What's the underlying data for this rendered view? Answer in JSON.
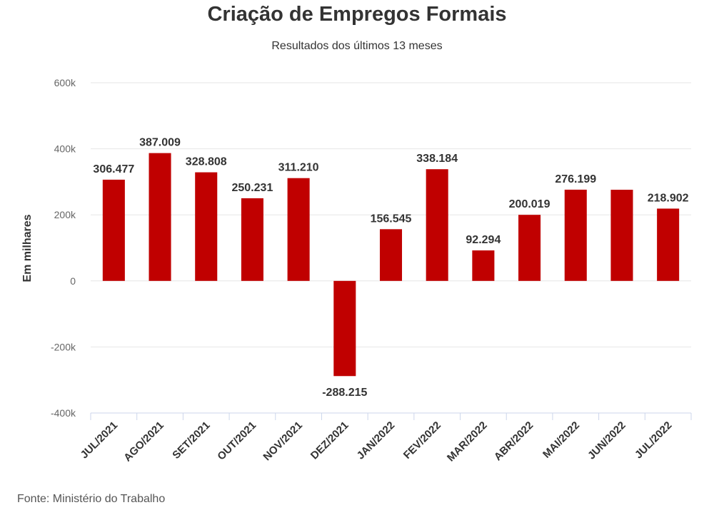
{
  "chart_data": {
    "type": "bar",
    "title": "Criação de Empregos Formais",
    "subtitle": "Resultados dos últimos 13 meses",
    "ylabel": "Em milhares",
    "xlabel": "",
    "ylim": [
      -400000,
      600000
    ],
    "y_ticks": [
      600000,
      400000,
      200000,
      0,
      -200000,
      -400000
    ],
    "y_tick_labels": [
      "600k",
      "400k",
      "200k",
      "0",
      "-200k",
      "-400k"
    ],
    "grid": true,
    "legend": "none",
    "categories": [
      "JUL/2021",
      "AGO/2021",
      "SET/2021",
      "OUT/2021",
      "NOV/2021",
      "DEZ/2021",
      "JAN/2022",
      "FEV/2022",
      "MAR/2022",
      "ABR/2022",
      "MAI/2022",
      "JUN/2022",
      "JUL/2022"
    ],
    "values": [
      306477,
      387009,
      328808,
      250231,
      311210,
      -288215,
      156545,
      338184,
      92294,
      200019,
      276199,
      276000,
      218902
    ],
    "data_labels": [
      "306.477",
      "387.009",
      "328.808",
      "250.231",
      "311.210",
      "-288.215",
      "156.545",
      "338.184",
      "92.294",
      "200.019",
      "276.199",
      "",
      "218.902"
    ],
    "bar_color": "#c00000",
    "source": "Fonte: Ministério do Trabalho"
  }
}
